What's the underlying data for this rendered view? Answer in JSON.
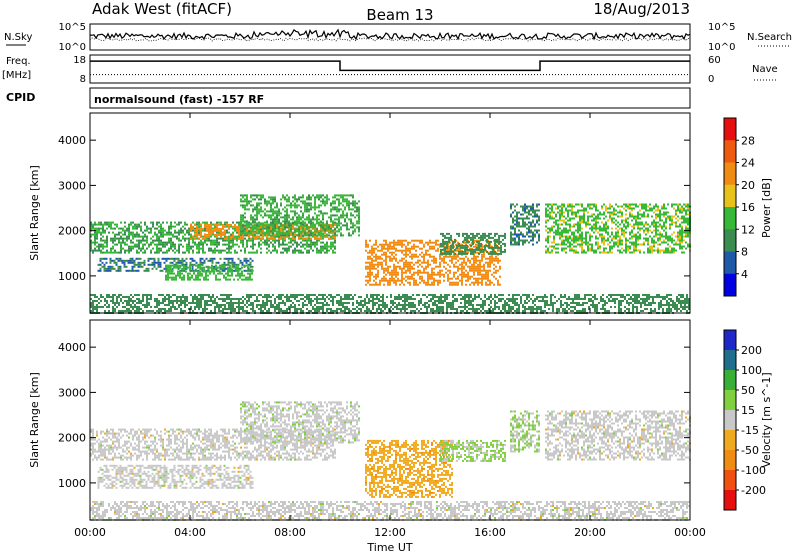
{
  "header": {
    "station": "Adak West (fitACF)",
    "beam": "Beam 13",
    "date": "18/Aug/2013"
  },
  "noise_panel": {
    "left_label": "N.Sky",
    "right_label": "N.Search",
    "left_ticks": [
      "10^5",
      "10^0"
    ],
    "right_ticks": [
      "10^5",
      "10^0"
    ]
  },
  "freq_panel": {
    "left_label": "Freq.",
    "left_units": "[MHz]",
    "right_label": "Nave",
    "left_ticks": [
      "18",
      "8"
    ],
    "right_ticks": [
      "60",
      "0"
    ],
    "freq_steps": [
      {
        "start_hr": 0,
        "end_hr": 10,
        "level": 0.78
      },
      {
        "start_hr": 10,
        "end_hr": 18,
        "level": 0.45
      },
      {
        "start_hr": 18,
        "end_hr": 24,
        "level": 0.78
      }
    ],
    "nave_level": 0.3
  },
  "cpid": {
    "label": "CPID",
    "text": "normalsound (fast) -157 RF"
  },
  "x_axis": {
    "label": "Time UT",
    "ticks": [
      "00:00",
      "04:00",
      "08:00",
      "12:00",
      "16:00",
      "20:00",
      "00:00"
    ],
    "range_hr": [
      0,
      24
    ]
  },
  "chart_data": [
    {
      "type": "heatmap",
      "name": "power",
      "ylabel": "Slant Range [km]",
      "ylim": [
        180,
        4600
      ],
      "yticks": [
        1000,
        2000,
        3000,
        4000
      ],
      "colorbar_label": "Power [dB]",
      "colorbar_ticks": [
        4,
        8,
        12,
        16,
        20,
        24,
        28
      ],
      "colorbar_range": [
        0,
        32
      ],
      "colors": [
        "#0000e0",
        "#1e5aa8",
        "#3a8c50",
        "#38b838",
        "#e6c21a",
        "#f08c14",
        "#ee5a10",
        "#e60f0f"
      ],
      "features": [
        {
          "t0": 0.0,
          "t1": 9.8,
          "r0": 1500,
          "r1": 2200,
          "value": 12
        },
        {
          "t0": 4.0,
          "t1": 9.8,
          "r0": 1800,
          "r1": 2150,
          "value": 22
        },
        {
          "t0": 0.3,
          "t1": 6.5,
          "r0": 1100,
          "r1": 1400,
          "value": 8
        },
        {
          "t0": 3.0,
          "t1": 6.5,
          "r0": 900,
          "r1": 1250,
          "value": 14
        },
        {
          "t0": 6.0,
          "t1": 10.8,
          "r0": 1900,
          "r1": 2800,
          "value": 13
        },
        {
          "t0": 11.0,
          "t1": 16.4,
          "r0": 800,
          "r1": 1800,
          "value": 22
        },
        {
          "t0": 14.0,
          "t1": 16.6,
          "r0": 1500,
          "r1": 1950,
          "value": 10
        },
        {
          "t0": 16.8,
          "t1": 18.0,
          "r0": 1700,
          "r1": 2600,
          "value": 9
        },
        {
          "t0": 18.2,
          "t1": 24.0,
          "r0": 1500,
          "r1": 2600,
          "value": 15
        },
        {
          "t0": 0.0,
          "t1": 24.0,
          "r0": 200,
          "r1": 600,
          "value": 10
        }
      ]
    },
    {
      "type": "heatmap",
      "name": "velocity",
      "ylabel": "Slant Range [km]",
      "ylim": [
        180,
        4600
      ],
      "yticks": [
        1000,
        2000,
        3000,
        4000
      ],
      "colorbar_label": "Velocity [m s^-1]",
      "colorbar_ticks": [
        200,
        100,
        50,
        15,
        -15,
        -50,
        -100,
        -200
      ],
      "colorbar_range": [
        -250,
        250
      ],
      "colors": [
        "#e60f0f",
        "#f05010",
        "#f08c14",
        "#f0aa20",
        "#c8c8c8",
        "#80d040",
        "#38b038",
        "#1e6e8c",
        "#1e28c8"
      ],
      "features": [
        {
          "t0": 0.0,
          "t1": 9.8,
          "r0": 1500,
          "r1": 2200,
          "value": 0
        },
        {
          "t0": 0.3,
          "t1": 6.5,
          "r0": 900,
          "r1": 1400,
          "value": 0
        },
        {
          "t0": 6.0,
          "t1": 10.8,
          "r0": 1900,
          "r1": 2800,
          "value": 5
        },
        {
          "t0": 11.0,
          "t1": 14.5,
          "r0": 700,
          "r1": 1950,
          "value": -60
        },
        {
          "t0": 14.0,
          "t1": 16.6,
          "r0": 1500,
          "r1": 1950,
          "value": 40
        },
        {
          "t0": 16.8,
          "t1": 18.0,
          "r0": 1700,
          "r1": 2600,
          "value": 30
        },
        {
          "t0": 18.2,
          "t1": 24.0,
          "r0": 1500,
          "r1": 2600,
          "value": 0
        },
        {
          "t0": 0.0,
          "t1": 24.0,
          "r0": 200,
          "r1": 600,
          "value": 0
        }
      ]
    }
  ]
}
